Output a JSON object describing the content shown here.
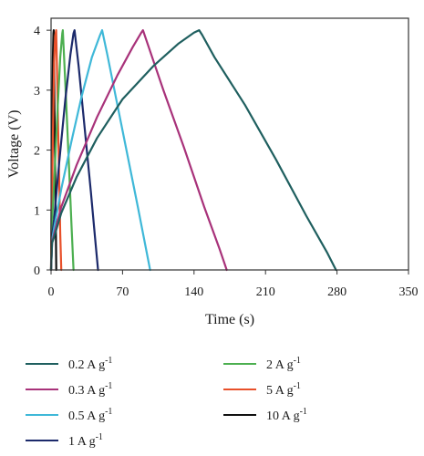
{
  "chart_data": {
    "type": "line",
    "xlabel": "Time (s)",
    "ylabel": "Voltage (V)",
    "xlim": [
      0,
      350
    ],
    "ylim": [
      0,
      4.2
    ],
    "xticks": [
      "0",
      "70",
      "140",
      "210",
      "280",
      "350"
    ],
    "yticks": [
      "0",
      "1",
      "2",
      "3",
      "4"
    ],
    "grid": false,
    "legend_position": "bottom",
    "legend_unit": "A g",
    "legend_exponent": "-1",
    "series": [
      {
        "name": "0.2",
        "color": "#1f5f5f",
        "x": [
          0,
          1,
          3,
          10,
          25,
          45,
          70,
          100,
          125,
          140,
          145,
          148,
          160,
          190,
          220,
          250,
          270,
          279
        ],
        "y": [
          0,
          0.45,
          0.55,
          0.95,
          1.55,
          2.2,
          2.85,
          3.4,
          3.78,
          3.96,
          4.0,
          3.92,
          3.55,
          2.75,
          1.85,
          0.9,
          0.3,
          0
        ]
      },
      {
        "name": "0.3",
        "color": "#a8327a",
        "x": [
          0,
          1,
          3,
          10,
          25,
          45,
          65,
          80,
          88,
          90,
          95,
          110,
          130,
          150,
          165,
          172
        ],
        "y": [
          0,
          0.45,
          0.6,
          1.05,
          1.75,
          2.55,
          3.25,
          3.72,
          3.95,
          4.0,
          3.75,
          3.0,
          2.05,
          1.05,
          0.35,
          0
        ]
      },
      {
        "name": "0.5",
        "color": "#3fb8d8",
        "x": [
          0,
          1,
          3,
          10,
          20,
          30,
          40,
          48,
          50,
          55,
          65,
          75,
          85,
          93,
          97
        ],
        "y": [
          0,
          0.5,
          0.7,
          1.35,
          2.15,
          2.9,
          3.55,
          3.92,
          4.0,
          3.6,
          2.75,
          1.9,
          1.05,
          0.35,
          0
        ]
      },
      {
        "name": "1",
        "color": "#1c2a6b",
        "x": [
          0,
          1,
          3,
          8,
          14,
          19,
          22,
          23,
          27,
          33,
          39,
          43,
          46
        ],
        "y": [
          0,
          0.55,
          0.85,
          1.8,
          2.85,
          3.6,
          3.95,
          4.0,
          3.4,
          2.35,
          1.3,
          0.55,
          0
        ]
      },
      {
        "name": "2",
        "color": "#4caf50",
        "x": [
          0,
          1,
          3,
          6,
          9,
          11,
          11.5,
          14,
          17,
          20,
          22
        ],
        "y": [
          0,
          0.8,
          1.45,
          2.55,
          3.55,
          3.95,
          4.0,
          3.1,
          1.95,
          0.75,
          0
        ]
      },
      {
        "name": "5",
        "color": "#e8502a",
        "x": [
          0,
          1,
          2,
          3,
          4,
          5,
          6,
          7,
          8,
          9,
          10
        ],
        "y": [
          0,
          1.3,
          2.45,
          3.45,
          3.9,
          4.0,
          3.2,
          2.3,
          1.45,
          0.6,
          0
        ]
      },
      {
        "name": "10",
        "color": "#111111",
        "x": [
          0,
          0.6,
          1.2,
          1.8,
          2.3,
          2.6,
          3.1,
          3.8,
          4.5,
          5.1
        ],
        "y": [
          0,
          1.3,
          2.55,
          3.55,
          3.95,
          4.0,
          3.1,
          2.05,
          1.0,
          0
        ]
      }
    ]
  }
}
